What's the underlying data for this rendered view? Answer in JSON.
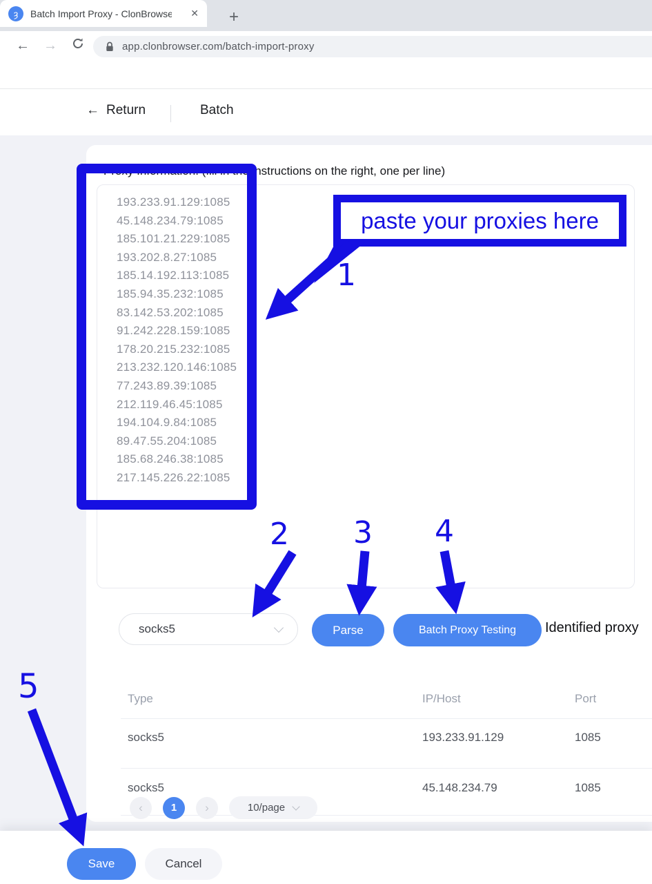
{
  "colors": {
    "annotation": "#1610e2",
    "accent": "#4a86f0"
  },
  "browser": {
    "tab_title": "Batch Import Proxy - ClonBrowse",
    "favicon_glyph": "ȝ",
    "close_tab": "✕",
    "new_tab": "+",
    "back": "←",
    "forward": "→",
    "url": "app.clonbrowser.com/batch-import-proxy"
  },
  "page": {
    "header": {
      "back_arrow": "←",
      "return_label": "Return",
      "title": "Batch"
    },
    "proxy_label": "Proxy Information. (fill in the instructions on the right, one per line)",
    "proxies": [
      "193.233.91.129:1085",
      "45.148.234.79:1085",
      "185.101.21.229:1085",
      "193.202.8.27:1085",
      "185.14.192.113:1085",
      "185.94.35.232:1085",
      "83.142.53.202:1085",
      "91.242.228.159:1085",
      "178.20.215.232:1085",
      "213.232.120.146:1085",
      "77.243.89.39:1085",
      "212.119.46.45:1085",
      "194.104.9.84:1085",
      "89.47.55.204:1085",
      "185.68.246.38:1085",
      "217.145.226.22:1085"
    ],
    "protocol_value": "socks5",
    "parse_button": "Parse",
    "batch_test_button": "Batch Proxy Testing",
    "identified_label": "Identified proxy",
    "table": {
      "headers": {
        "type": "Type",
        "ip": "IP/Host",
        "port": "Port"
      },
      "rows": [
        {
          "type": "socks5",
          "ip": "193.233.91.129",
          "port": "1085"
        },
        {
          "type": "socks5",
          "ip": "45.148.234.79",
          "port": "1085"
        }
      ]
    },
    "pagination": {
      "prev": "‹",
      "page": "1",
      "next": "›",
      "per_page": "10/page"
    },
    "footer": {
      "save": "Save",
      "cancel": "Cancel"
    }
  },
  "annotations": {
    "callout": "paste your proxies here",
    "steps": {
      "one": "1",
      "two": "2",
      "three": "3",
      "four": "4",
      "five": "5"
    }
  }
}
